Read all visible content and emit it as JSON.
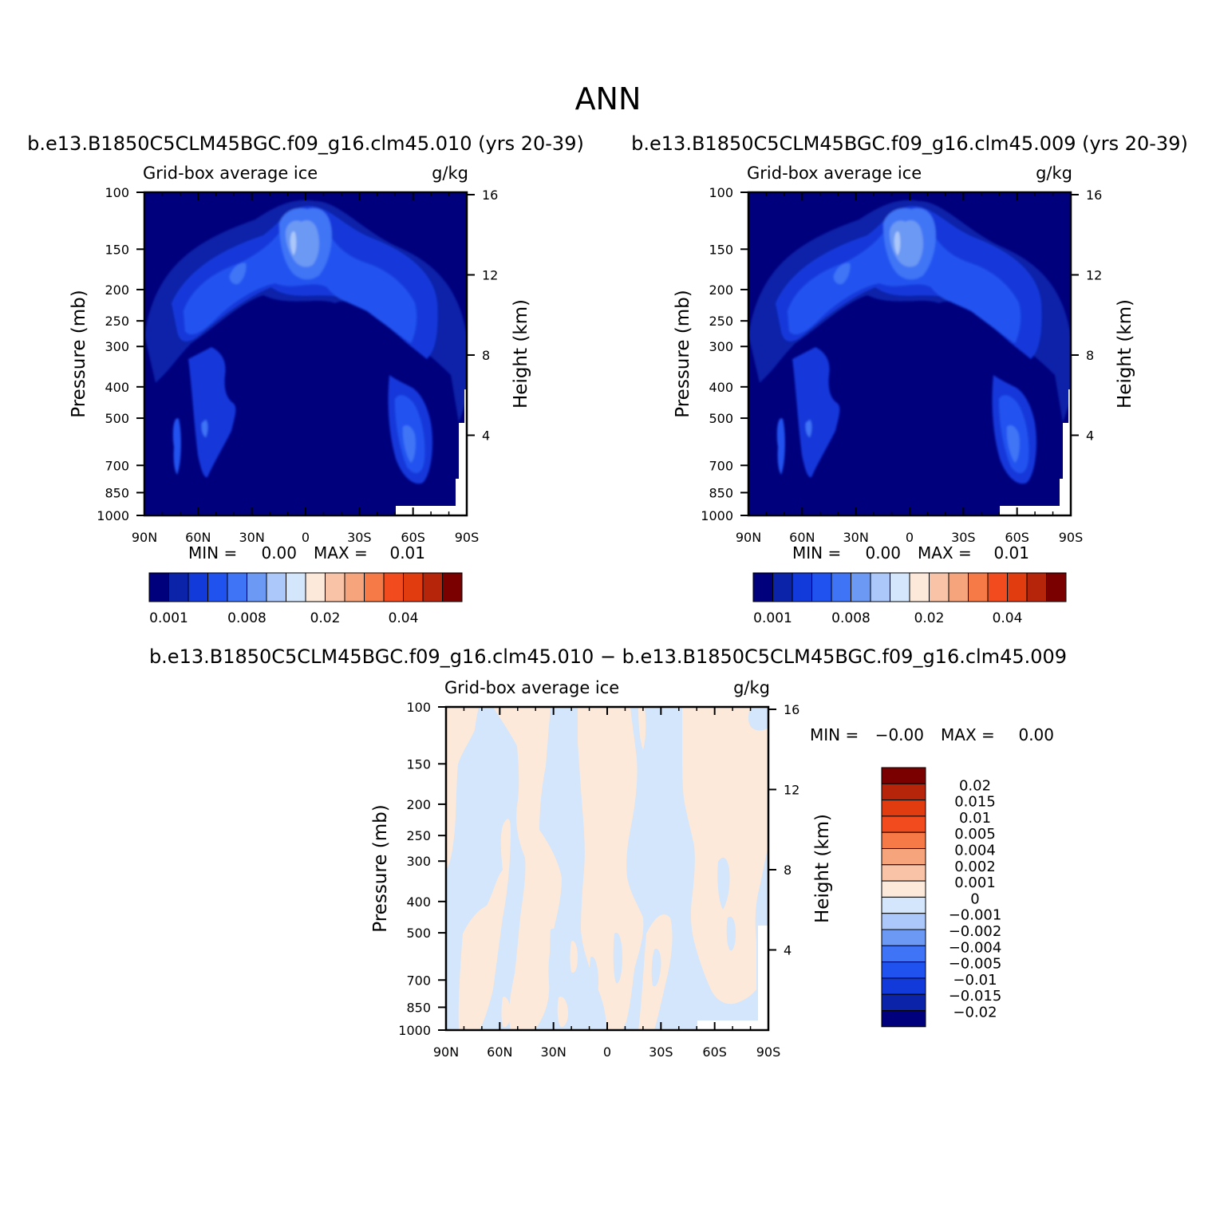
{
  "figure": {
    "season": "ANN"
  },
  "panels": [
    {
      "id": "case1",
      "case_label": "b.e13.B1850C5CLM45BGC.f09_g16.clm45.010 (yrs 20-39)",
      "variable_label": "Grid-box average ice",
      "units": "g/kg",
      "ylabel_left": "Pressure (mb)",
      "ylabel_right": "Height (km)",
      "min_label": "MIN =",
      "min_value": "0.00",
      "max_label": "MAX =",
      "max_value": "0.01"
    },
    {
      "id": "case2",
      "case_label": "b.e13.B1850C5CLM45BGC.f09_g16.clm45.009 (yrs 20-39)",
      "variable_label": "Grid-box average ice",
      "units": "g/kg",
      "ylabel_left": "Pressure (mb)",
      "ylabel_right": "Height (km)",
      "min_label": "MIN =",
      "min_value": "0.00",
      "max_label": "MAX =",
      "max_value": "0.01"
    },
    {
      "id": "difference",
      "case_label": "b.e13.B1850C5CLM45BGC.f09_g16.clm45.010 − b.e13.B1850C5CLM45BGC.f09_g16.clm45.009",
      "variable_label": "Grid-box average ice",
      "units": "g/kg",
      "ylabel_left": "Pressure (mb)",
      "ylabel_right": "Height (km)",
      "min_label": "MIN =",
      "min_value": "−0.00",
      "max_label": "MAX =",
      "max_value": "0.00"
    }
  ],
  "axes": {
    "x_ticks": [
      "90N",
      "60N",
      "30N",
      "0",
      "30S",
      "60S",
      "90S"
    ],
    "pressure_ticks": [
      100,
      150,
      200,
      250,
      300,
      400,
      500,
      700,
      850,
      1000
    ],
    "height_ticks": [
      16,
      12,
      8,
      4
    ]
  },
  "colorbars": {
    "abs_colors": [
      "#00007d",
      "#0b23a8",
      "#1239da",
      "#2052f0",
      "#3f74f6",
      "#6c99f3",
      "#acc7f9",
      "#d3e6fb",
      "#fde9d9",
      "#f8c3a7",
      "#f5a47c",
      "#f57a47",
      "#f24c1e",
      "#e13b10",
      "#b6240a",
      "#7a0000"
    ],
    "abs_labels": [
      "0.001",
      "0.008",
      "0.02",
      "0.04"
    ],
    "diff_colors": [
      "#7a0000",
      "#b6240a",
      "#e13b10",
      "#f24c1e",
      "#f57a47",
      "#f5a47c",
      "#f8c3a7",
      "#fde9d9",
      "#d3e6fb",
      "#acc7f9",
      "#6c99f3",
      "#3f74f6",
      "#2052f0",
      "#1239da",
      "#0b23a8",
      "#00007d"
    ],
    "diff_labels": [
      "0.02",
      "0.015",
      "0.01",
      "0.005",
      "0.004",
      "0.002",
      "0.001",
      "0",
      "−0.001",
      "−0.002",
      "−0.004",
      "−0.005",
      "−0.01",
      "−0.015",
      "−0.02"
    ]
  },
  "chart_data": [
    {
      "type": "heatmap",
      "panel": "case1",
      "description_x": "latitude",
      "xlim": [
        "90N",
        "90S"
      ],
      "ylim_pressure_mb": [
        100,
        1000
      ],
      "x": [
        "90N",
        "60N",
        "30N",
        "0",
        "30S",
        "60S",
        "90S"
      ],
      "ylog": true,
      "min": 0.0,
      "max": 0.01
    },
    {
      "type": "heatmap",
      "panel": "case2",
      "xlim": [
        "90N",
        "90S"
      ],
      "ylim_pressure_mb": [
        100,
        1000
      ],
      "x": [
        "90N",
        "60N",
        "30N",
        "0",
        "30S",
        "60S",
        "90S"
      ],
      "ylog": true,
      "min": 0.0,
      "max": 0.01
    },
    {
      "type": "heatmap",
      "panel": "difference",
      "xlim": [
        "90N",
        "90S"
      ],
      "ylim_pressure_mb": [
        100,
        1000
      ],
      "x": [
        "90N",
        "60N",
        "30N",
        "0",
        "30S",
        "60S",
        "90S"
      ],
      "ylog": true,
      "min": -0.0,
      "max": 0.0
    }
  ]
}
